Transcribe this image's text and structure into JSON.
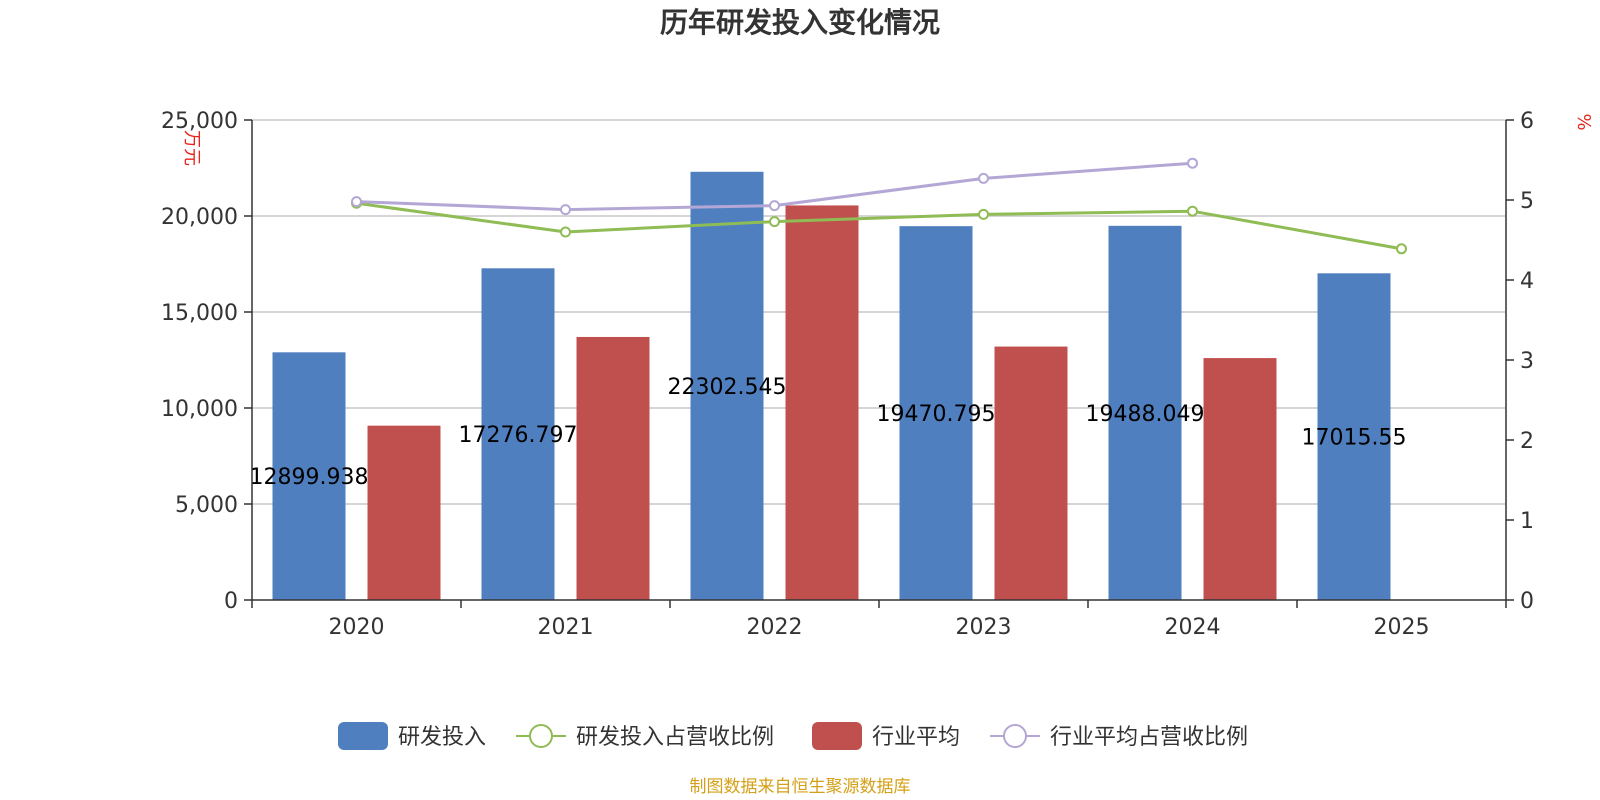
{
  "chart_data": {
    "type": "bar",
    "title": "历年研发投入变化情况",
    "categories": [
      "2020",
      "2021",
      "2022",
      "2023",
      "2024",
      "2025"
    ],
    "y_left": {
      "unit": "万元",
      "range": [
        0,
        25000
      ],
      "ticks": [
        "0",
        "5,000",
        "10,000",
        "15,000",
        "20,000",
        "25,000"
      ],
      "tick_values": [
        0,
        5000,
        10000,
        15000,
        20000,
        25000
      ]
    },
    "y_right": {
      "unit": "%",
      "range": [
        0,
        6
      ],
      "ticks": [
        "0",
        "1",
        "2",
        "3",
        "4",
        "5",
        "6"
      ],
      "tick_values": [
        0,
        1,
        2,
        3,
        4,
        5,
        6
      ]
    },
    "series": [
      {
        "name": "研发投入",
        "kind": "bar",
        "axis": "left",
        "color": "#4f7fbf",
        "values": [
          12899.938,
          17276.797,
          22302.545,
          19470.795,
          19488.049,
          17015.55
        ],
        "labels": [
          "12899.938",
          "17276.797",
          "22302.545",
          "19470.795",
          "19488.049",
          "17015.55"
        ]
      },
      {
        "name": "研发投入占营收比例",
        "kind": "line",
        "axis": "right",
        "color": "#8fbc54",
        "values": [
          4.96,
          4.6,
          4.73,
          4.82,
          4.86,
          4.39
        ]
      },
      {
        "name": "行业平均",
        "kind": "bar",
        "axis": "left",
        "color": "#c0504d",
        "values": [
          9080,
          13700,
          20550,
          13200,
          12600,
          null
        ]
      },
      {
        "name": "行业平均占营收比例",
        "kind": "line",
        "axis": "right",
        "color": "#b4a7d6",
        "values": [
          4.98,
          4.88,
          4.93,
          5.27,
          5.46,
          null
        ]
      }
    ],
    "grid": true,
    "legend": "bottom"
  },
  "footer": {
    "source": "制图数据来自恒生聚源数据库"
  }
}
